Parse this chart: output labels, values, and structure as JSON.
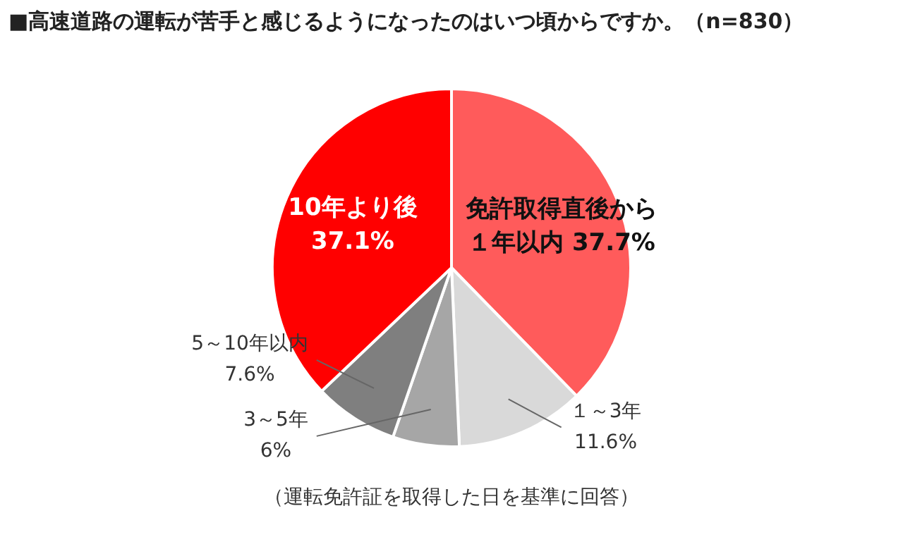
{
  "chart_data": {
    "type": "pie",
    "title": "■高速道路の運転が苦手と感じるようになったのはいつ頃からですか。（n=830）",
    "categories": [
      "免許取得直後から１年以内",
      "１～3年",
      "3～5年",
      "5～10年以内",
      "10年より後"
    ],
    "values": [
      37.7,
      11.6,
      6,
      7.6,
      37.1
    ],
    "value_labels": [
      "37.7%",
      "11.6%",
      "6%",
      "7.6%",
      "37.1%"
    ],
    "colors": [
      "#ff5b5b",
      "#d9d9d9",
      "#a6a6a6",
      "#7f7f7f",
      "#ff0000"
    ],
    "annotations": [
      "（運転免許証を取得した日を基準に回答）"
    ],
    "legend": false
  }
}
